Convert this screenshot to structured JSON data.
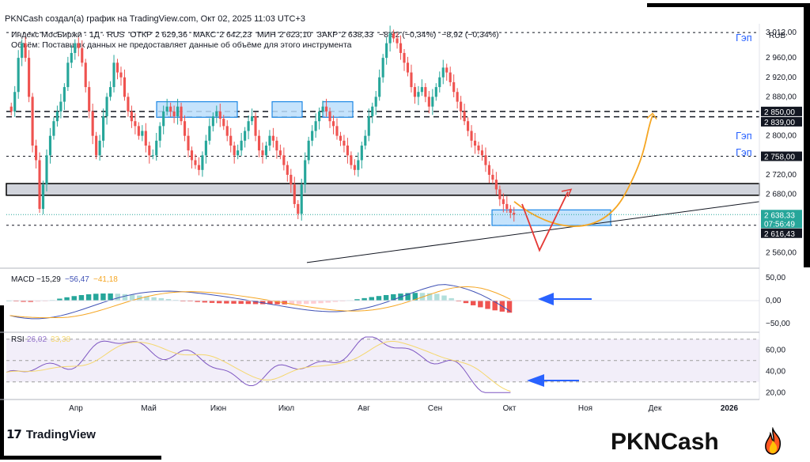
{
  "header": "PKNCash создал(а) график на TradingView.com, Окт 02, 2025 11:03 UTC+3",
  "info": {
    "symbol": "Индекс МосБиржи · 1Д · RUS",
    "open_label": "ОТКР",
    "open": "2 629,36",
    "high_label": "МАКС",
    "high": "2 642,23",
    "low_label": "МИН",
    "low": "2 623,10",
    "close_label": "ЗАКР",
    "close": "2 638,33",
    "change": "−8,92 (−0,34%)",
    "change2": "−8,92 (−0,34%)",
    "volume_note": "Объём: Поставщик данных не предоставляет данные об объёме для этого инструмента"
  },
  "currency": "RUB",
  "gap_labels": [
    "Гэп",
    "Гэп",
    "Гэп"
  ],
  "brand": "TradingView",
  "watermark": "PKNCash",
  "colors": {
    "up": "#26a69a",
    "down": "#ef5350",
    "accent": "#2962ff",
    "orange": "#f5a623",
    "red_path": "#e53935",
    "zone": "#bbdefb"
  },
  "chart_data": [
    {
      "type": "candlestick",
      "title": "Индекс МосБиржи · 1Д",
      "y_ticks": [
        "3 012,00",
        "2 960,00",
        "2 920,00",
        "2 880,00",
        "2 800,00",
        "2 720,00",
        "2 680,00",
        "2 560,00"
      ],
      "y_tick_values": [
        3012,
        2960,
        2920,
        2880,
        2800,
        2720,
        2680,
        2560
      ],
      "ylim": [
        2530,
        3030
      ],
      "price_tags": [
        {
          "label": "2 850,00",
          "value": 2850,
          "color": "#131722"
        },
        {
          "label": "2 839,00",
          "value": 2839,
          "color": "#131722"
        },
        {
          "label": "2 758,00",
          "value": 2758,
          "color": "#131722"
        },
        {
          "label": "2 638,33",
          "value": 2638.33,
          "color": "#26a69a"
        },
        {
          "label": "07:56:49",
          "value": 2630,
          "color": "#26a69a"
        },
        {
          "label": "2 616,43",
          "value": 2616.43,
          "color": "#131722"
        }
      ],
      "levels": [
        3012,
        2850,
        2839,
        2758,
        2616.43
      ],
      "resistance_band": [
        2678,
        2702
      ],
      "x_labels": [
        "Апр",
        "Май",
        "Июн",
        "Июл",
        "Авг",
        "Сен",
        "Окт",
        "Ноя",
        "Дек",
        "2026"
      ],
      "closes": [
        2850,
        2890,
        2960,
        2990,
        2960,
        2880,
        2780,
        2750,
        2650,
        2700,
        2760,
        2800,
        2830,
        2850,
        2870,
        2900,
        2950,
        2970,
        2990,
        2980,
        2950,
        2900,
        2850,
        2800,
        2760,
        2790,
        2840,
        2880,
        2900,
        2950,
        2930,
        2920,
        2880,
        2850,
        2830,
        2820,
        2800,
        2810,
        2780,
        2760,
        2760,
        2790,
        2820,
        2850,
        2860,
        2850,
        2840,
        2860,
        2830,
        2800,
        2770,
        2750,
        2740,
        2730,
        2760,
        2790,
        2820,
        2840,
        2850,
        2835,
        2820,
        2800,
        2780,
        2760,
        2770,
        2790,
        2810,
        2830,
        2840,
        2800,
        2770,
        2760,
        2780,
        2800,
        2790,
        2770,
        2760,
        2740,
        2720,
        2700,
        2660,
        2640,
        2700,
        2750,
        2790,
        2810,
        2830,
        2850,
        2860,
        2850,
        2830,
        2820,
        2800,
        2790,
        2780,
        2760,
        2740,
        2730,
        2750,
        2780,
        2800,
        2840,
        2860,
        2880,
        2920,
        2960,
        2990,
        3010,
        3000,
        2990,
        2970,
        2950,
        2930,
        2900,
        2880,
        2890,
        2900,
        2880,
        2860,
        2880,
        2900,
        2920,
        2940,
        2930,
        2910,
        2890,
        2870,
        2850,
        2830,
        2810,
        2790,
        2780,
        2770,
        2760,
        2740,
        2720,
        2710,
        2690,
        2670,
        2660,
        2650,
        2642,
        2638
      ],
      "gap_zones": [
        {
          "from": 2838,
          "to": 2870
        },
        {
          "from": 2838,
          "to": 2870
        },
        {
          "from": 2838,
          "to": 2870
        },
        {
          "from": 2616,
          "to": 2648
        }
      ]
    },
    {
      "type": "line",
      "title": "MACD",
      "legend": [
        "−15,29",
        "−56,47",
        "−41,18"
      ],
      "y_ticks": [
        "50,00",
        "0,00",
        "−50,00"
      ],
      "y_tick_values": [
        50,
        0,
        -50
      ],
      "ylim": [
        -65,
        65
      ]
    },
    {
      "type": "line",
      "title": "RSI",
      "legend": [
        "26,02",
        "33,38"
      ],
      "y_ticks": [
        "60,00",
        "40,00",
        "20,00"
      ],
      "y_tick_values": [
        60,
        40,
        20
      ],
      "ylim": [
        15,
        75
      ]
    }
  ]
}
